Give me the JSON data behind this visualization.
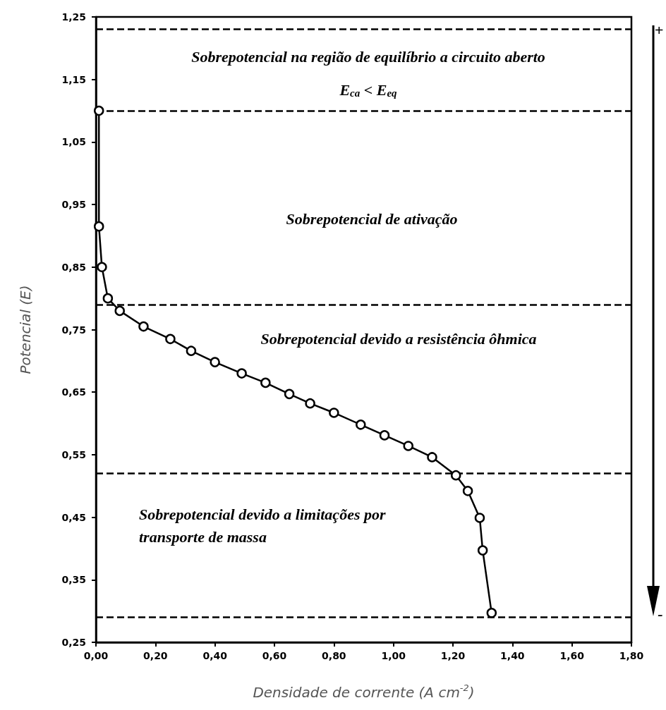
{
  "chart_data": {
    "type": "line",
    "xlabel": "Densidade de corrente (A cm$^{-2}$)",
    "ylabel": "Potencial (E)",
    "x": [
      0.01,
      0.01,
      0.02,
      0.04,
      0.08,
      0.16,
      0.25,
      0.32,
      0.4,
      0.49,
      0.57,
      0.65,
      0.72,
      0.8,
      0.89,
      0.97,
      1.05,
      1.13,
      1.21,
      1.25,
      1.29,
      1.3,
      1.33
    ],
    "series": [
      {
        "color": "#000000",
        "values": [
          1.1,
          0.915,
          0.85,
          0.8,
          0.78,
          0.755,
          0.735,
          0.716,
          0.698,
          0.68,
          0.665,
          0.647,
          0.632,
          0.617,
          0.598,
          0.581,
          0.564,
          0.546,
          0.517,
          0.492,
          0.449,
          0.397,
          0.297
        ]
      }
    ],
    "marker": "circle",
    "line_style": "solid",
    "grid": false,
    "xlim": [
      0,
      1.8
    ],
    "xticks": [
      {
        "value": 0,
        "label": "0,00"
      },
      {
        "value": 0.2,
        "label": "0,20"
      },
      {
        "value": 0.4,
        "label": "0,40"
      },
      {
        "value": 0.6,
        "label": "0,60"
      },
      {
        "value": 0.8,
        "label": "0,80"
      },
      {
        "value": 1.0,
        "label": "1,00"
      },
      {
        "value": 1.2,
        "label": "1,20"
      },
      {
        "value": 1.4,
        "label": "1,40"
      },
      {
        "value": 1.6,
        "label": "1,60"
      },
      {
        "value": 1.8,
        "label": "1,80"
      }
    ],
    "ylim": [
      0.25,
      1.25
    ],
    "yticks": [
      {
        "value": 0.25,
        "label": "0,25"
      },
      {
        "value": 0.35,
        "label": "0,35"
      },
      {
        "value": 0.45,
        "label": "0,45"
      },
      {
        "value": 0.55,
        "label": "0,55"
      },
      {
        "value": 0.65,
        "label": "0,65"
      },
      {
        "value": 0.75,
        "label": "0,75"
      },
      {
        "value": 0.85,
        "label": "0,85"
      },
      {
        "value": 0.95,
        "label": "0,95"
      },
      {
        "value": 1.05,
        "label": "1,05"
      },
      {
        "value": 1.15,
        "label": "1,15"
      },
      {
        "value": 1.25,
        "label": "1,25"
      }
    ],
    "ref_lines": [
      {
        "axis": "y",
        "value": 1.23,
        "color": "#000000",
        "line_style": "dashed"
      },
      {
        "axis": "y",
        "value": 1.1,
        "color": "#000000",
        "line_style": "dashed"
      },
      {
        "axis": "y",
        "value": 0.79,
        "color": "#000000",
        "line_style": "dashed"
      },
      {
        "axis": "y",
        "value": 0.52,
        "color": "#000000",
        "line_style": "dashed"
      },
      {
        "axis": "y",
        "value": 0.29,
        "color": "#000000",
        "line_style": "dashed"
      }
    ],
    "annotations": [
      "Sobrepotencial na região de equilíbrio a circuito aberto",
      "E$_{ca}$ < E$_{eq}$",
      "Sobrepotencial de ativação",
      "Sobrepotencial devido a resistência ôhmica",
      "Sobrepotencial devido a limitações por transporte de massa",
      "+",
      "-"
    ]
  }
}
